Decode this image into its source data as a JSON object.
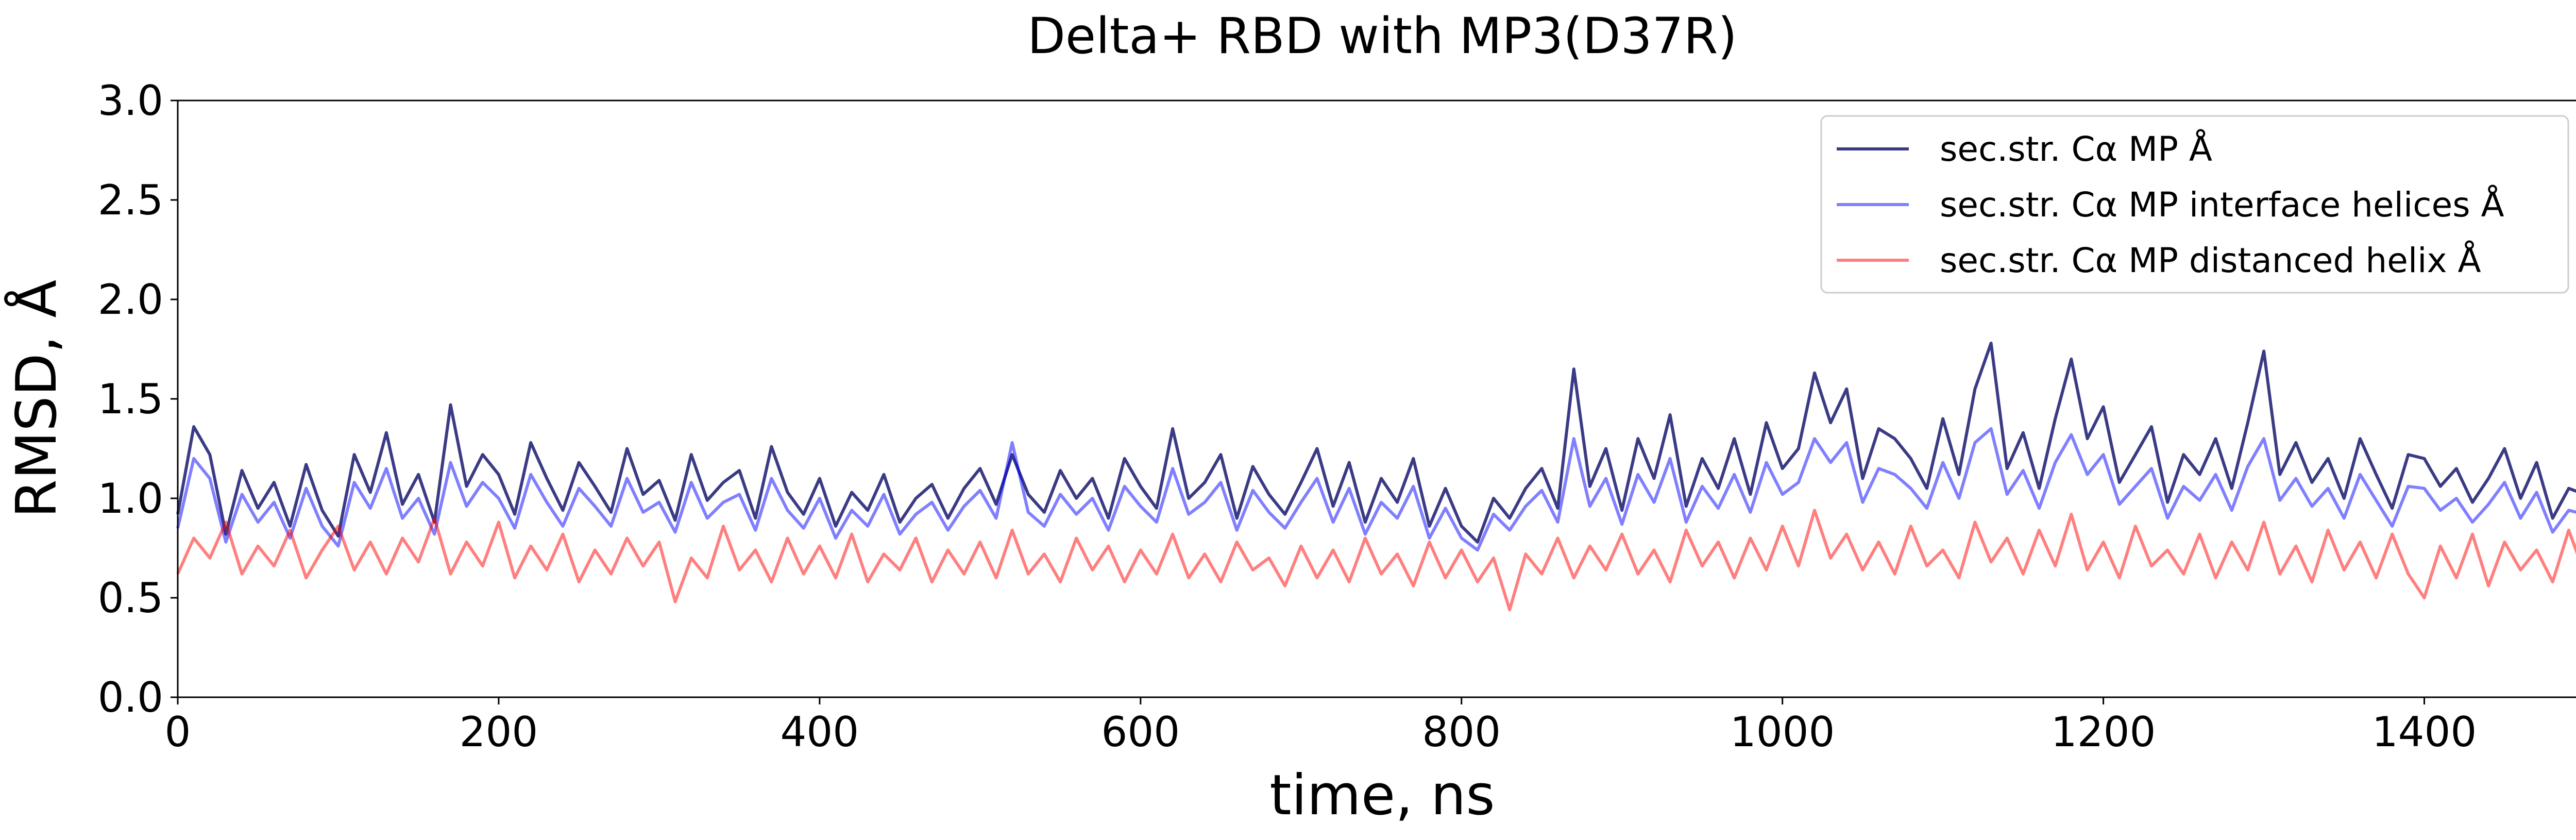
{
  "chart_data": {
    "type": "line",
    "title": "Delta+ RBD with MP3(D37R)",
    "xlabel": "time, ns",
    "ylabel": "RMSD, Å",
    "xlim": [
      0,
      1500
    ],
    "ylim": [
      0.0,
      3.0
    ],
    "xticks": [
      0,
      200,
      400,
      600,
      800,
      1000,
      1200,
      1400
    ],
    "yticks": [
      0.0,
      0.5,
      1.0,
      1.5,
      2.0,
      2.5,
      3.0
    ],
    "xtick_labels": [
      "0",
      "200",
      "400",
      "600",
      "800",
      "1000",
      "1200",
      "1400"
    ],
    "ytick_labels": [
      "0.0",
      "0.5",
      "1.0",
      "1.5",
      "2.0",
      "2.5",
      "3.0"
    ],
    "grid": false,
    "legend_position": "top-right",
    "series": [
      {
        "name": "sec.str. Cα MP Å",
        "color": "#191970",
        "opacity": 0.85,
        "x": [
          0,
          10,
          20,
          30,
          40,
          50,
          60,
          70,
          80,
          90,
          100,
          110,
          120,
          130,
          140,
          150,
          160,
          170,
          180,
          190,
          200,
          210,
          220,
          230,
          240,
          250,
          260,
          270,
          280,
          290,
          300,
          310,
          320,
          330,
          340,
          350,
          360,
          370,
          380,
          390,
          400,
          410,
          420,
          430,
          440,
          450,
          460,
          470,
          480,
          490,
          500,
          510,
          520,
          530,
          540,
          550,
          560,
          570,
          580,
          590,
          600,
          610,
          620,
          630,
          640,
          650,
          660,
          670,
          680,
          690,
          700,
          710,
          720,
          730,
          740,
          750,
          760,
          770,
          780,
          790,
          800,
          810,
          820,
          830,
          840,
          850,
          860,
          870,
          880,
          890,
          900,
          910,
          920,
          930,
          940,
          950,
          960,
          970,
          980,
          990,
          1000,
          1010,
          1020,
          1030,
          1040,
          1050,
          1060,
          1070,
          1080,
          1090,
          1100,
          1110,
          1120,
          1130,
          1140,
          1150,
          1160,
          1170,
          1180,
          1190,
          1200,
          1210,
          1220,
          1230,
          1240,
          1250,
          1260,
          1270,
          1280,
          1290,
          1300,
          1310,
          1320,
          1330,
          1340,
          1350,
          1360,
          1370,
          1380,
          1390,
          1400,
          1410,
          1420,
          1430,
          1440,
          1450,
          1460,
          1470,
          1480,
          1490,
          1500
        ],
        "y": [
          0.92,
          1.36,
          1.22,
          0.82,
          1.14,
          0.95,
          1.08,
          0.86,
          1.17,
          0.94,
          0.81,
          1.22,
          1.03,
          1.33,
          0.97,
          1.12,
          0.88,
          1.47,
          1.06,
          1.22,
          1.12,
          0.92,
          1.28,
          1.1,
          0.94,
          1.18,
          1.06,
          0.93,
          1.25,
          1.02,
          1.09,
          0.89,
          1.22,
          0.99,
          1.08,
          1.14,
          0.9,
          1.26,
          1.03,
          0.92,
          1.1,
          0.86,
          1.03,
          0.94,
          1.12,
          0.88,
          1.0,
          1.07,
          0.9,
          1.05,
          1.15,
          0.97,
          1.22,
          1.02,
          0.93,
          1.14,
          1.0,
          1.1,
          0.9,
          1.2,
          1.06,
          0.95,
          1.35,
          1.0,
          1.08,
          1.22,
          0.9,
          1.16,
          1.02,
          0.92,
          1.08,
          1.25,
          0.96,
          1.18,
          0.88,
          1.1,
          0.98,
          1.2,
          0.86,
          1.05,
          0.86,
          0.78,
          1.0,
          0.9,
          1.05,
          1.15,
          0.95,
          1.65,
          1.06,
          1.25,
          0.94,
          1.3,
          1.1,
          1.42,
          0.96,
          1.2,
          1.05,
          1.3,
          1.02,
          1.38,
          1.15,
          1.25,
          1.63,
          1.38,
          1.55,
          1.1,
          1.35,
          1.3,
          1.2,
          1.05,
          1.4,
          1.12,
          1.55,
          1.78,
          1.15,
          1.33,
          1.05,
          1.4,
          1.7,
          1.3,
          1.46,
          1.08,
          1.22,
          1.36,
          0.98,
          1.22,
          1.12,
          1.3,
          1.05,
          1.38,
          1.74,
          1.12,
          1.28,
          1.08,
          1.2,
          1.0,
          1.3,
          1.12,
          0.95,
          1.22,
          1.2,
          1.06,
          1.15,
          0.98,
          1.1,
          1.25,
          1.0,
          1.18,
          0.9,
          1.05,
          1.02
        ]
      },
      {
        "name": "sec.str. Cα MP interface helices Å",
        "color": "#0000ff",
        "opacity": 0.5,
        "x": [
          0,
          10,
          20,
          30,
          40,
          50,
          60,
          70,
          80,
          90,
          100,
          110,
          120,
          130,
          140,
          150,
          160,
          170,
          180,
          190,
          200,
          210,
          220,
          230,
          240,
          250,
          260,
          270,
          280,
          290,
          300,
          310,
          320,
          330,
          340,
          350,
          360,
          370,
          380,
          390,
          400,
          410,
          420,
          430,
          440,
          450,
          460,
          470,
          480,
          490,
          500,
          510,
          520,
          530,
          540,
          550,
          560,
          570,
          580,
          590,
          600,
          610,
          620,
          630,
          640,
          650,
          660,
          670,
          680,
          690,
          700,
          710,
          720,
          730,
          740,
          750,
          760,
          770,
          780,
          790,
          800,
          810,
          820,
          830,
          840,
          850,
          860,
          870,
          880,
          890,
          900,
          910,
          920,
          930,
          940,
          950,
          960,
          970,
          980,
          990,
          1000,
          1010,
          1020,
          1030,
          1040,
          1050,
          1060,
          1070,
          1080,
          1090,
          1100,
          1110,
          1120,
          1130,
          1140,
          1150,
          1160,
          1170,
          1180,
          1190,
          1200,
          1210,
          1220,
          1230,
          1240,
          1250,
          1260,
          1270,
          1280,
          1290,
          1300,
          1310,
          1320,
          1330,
          1340,
          1350,
          1360,
          1370,
          1380,
          1390,
          1400,
          1410,
          1420,
          1430,
          1440,
          1450,
          1460,
          1470,
          1480,
          1490,
          1500
        ],
        "y": [
          0.85,
          1.2,
          1.1,
          0.78,
          1.02,
          0.88,
          0.98,
          0.8,
          1.05,
          0.86,
          0.76,
          1.08,
          0.95,
          1.15,
          0.9,
          1.0,
          0.82,
          1.18,
          0.96,
          1.08,
          1.0,
          0.85,
          1.12,
          0.98,
          0.86,
          1.05,
          0.96,
          0.86,
          1.1,
          0.93,
          0.98,
          0.83,
          1.08,
          0.9,
          0.98,
          1.02,
          0.84,
          1.1,
          0.94,
          0.85,
          1.0,
          0.8,
          0.94,
          0.86,
          1.02,
          0.82,
          0.92,
          0.98,
          0.84,
          0.96,
          1.04,
          0.9,
          1.28,
          0.93,
          0.86,
          1.02,
          0.92,
          1.0,
          0.84,
          1.06,
          0.96,
          0.88,
          1.15,
          0.92,
          0.98,
          1.08,
          0.84,
          1.04,
          0.93,
          0.85,
          0.98,
          1.1,
          0.88,
          1.05,
          0.82,
          0.98,
          0.9,
          1.06,
          0.8,
          0.95,
          0.8,
          0.74,
          0.92,
          0.84,
          0.96,
          1.04,
          0.88,
          1.3,
          0.96,
          1.1,
          0.87,
          1.12,
          0.98,
          1.2,
          0.88,
          1.06,
          0.95,
          1.12,
          0.93,
          1.18,
          1.02,
          1.08,
          1.3,
          1.18,
          1.28,
          0.98,
          1.15,
          1.12,
          1.05,
          0.95,
          1.18,
          1.0,
          1.28,
          1.35,
          1.02,
          1.14,
          0.95,
          1.18,
          1.32,
          1.12,
          1.22,
          0.97,
          1.06,
          1.15,
          0.9,
          1.06,
          0.99,
          1.12,
          0.94,
          1.16,
          1.3,
          0.99,
          1.1,
          0.96,
          1.05,
          0.9,
          1.12,
          0.99,
          0.86,
          1.06,
          1.05,
          0.94,
          1.0,
          0.88,
          0.97,
          1.08,
          0.9,
          1.03,
          0.83,
          0.94,
          0.92
        ]
      },
      {
        "name": "sec.str. Cα MP distanced helix Å",
        "color": "#ff0000",
        "opacity": 0.5,
        "x": [
          0,
          10,
          20,
          30,
          40,
          50,
          60,
          70,
          80,
          90,
          100,
          110,
          120,
          130,
          140,
          150,
          160,
          170,
          180,
          190,
          200,
          210,
          220,
          230,
          240,
          250,
          260,
          270,
          280,
          290,
          300,
          310,
          320,
          330,
          340,
          350,
          360,
          370,
          380,
          390,
          400,
          410,
          420,
          430,
          440,
          450,
          460,
          470,
          480,
          490,
          500,
          510,
          520,
          530,
          540,
          550,
          560,
          570,
          580,
          590,
          600,
          610,
          620,
          630,
          640,
          650,
          660,
          670,
          680,
          690,
          700,
          710,
          720,
          730,
          740,
          750,
          760,
          770,
          780,
          790,
          800,
          810,
          820,
          830,
          840,
          850,
          860,
          870,
          880,
          890,
          900,
          910,
          920,
          930,
          940,
          950,
          960,
          970,
          980,
          990,
          1000,
          1010,
          1020,
          1030,
          1040,
          1050,
          1060,
          1070,
          1080,
          1090,
          1100,
          1110,
          1120,
          1130,
          1140,
          1150,
          1160,
          1170,
          1180,
          1190,
          1200,
          1210,
          1220,
          1230,
          1240,
          1250,
          1260,
          1270,
          1280,
          1290,
          1300,
          1310,
          1320,
          1330,
          1340,
          1350,
          1360,
          1370,
          1380,
          1390,
          1400,
          1410,
          1420,
          1430,
          1440,
          1450,
          1460,
          1470,
          1480,
          1490,
          1500
        ],
        "y": [
          0.62,
          0.8,
          0.7,
          0.88,
          0.62,
          0.76,
          0.66,
          0.84,
          0.6,
          0.74,
          0.86,
          0.64,
          0.78,
          0.62,
          0.8,
          0.68,
          0.9,
          0.62,
          0.78,
          0.66,
          0.88,
          0.6,
          0.76,
          0.64,
          0.82,
          0.58,
          0.74,
          0.62,
          0.8,
          0.66,
          0.78,
          0.48,
          0.7,
          0.6,
          0.86,
          0.64,
          0.74,
          0.58,
          0.8,
          0.62,
          0.76,
          0.6,
          0.82,
          0.58,
          0.72,
          0.64,
          0.8,
          0.58,
          0.74,
          0.62,
          0.78,
          0.6,
          0.84,
          0.62,
          0.72,
          0.58,
          0.8,
          0.64,
          0.76,
          0.58,
          0.74,
          0.62,
          0.82,
          0.6,
          0.72,
          0.58,
          0.78,
          0.64,
          0.7,
          0.56,
          0.76,
          0.6,
          0.74,
          0.58,
          0.8,
          0.62,
          0.72,
          0.56,
          0.78,
          0.6,
          0.74,
          0.58,
          0.7,
          0.44,
          0.72,
          0.62,
          0.8,
          0.6,
          0.76,
          0.64,
          0.82,
          0.62,
          0.74,
          0.58,
          0.84,
          0.66,
          0.78,
          0.6,
          0.8,
          0.64,
          0.86,
          0.66,
          0.94,
          0.7,
          0.82,
          0.64,
          0.78,
          0.62,
          0.86,
          0.66,
          0.74,
          0.6,
          0.88,
          0.68,
          0.8,
          0.62,
          0.84,
          0.66,
          0.92,
          0.64,
          0.78,
          0.6,
          0.86,
          0.66,
          0.74,
          0.62,
          0.82,
          0.6,
          0.78,
          0.64,
          0.88,
          0.62,
          0.76,
          0.58,
          0.84,
          0.64,
          0.78,
          0.6,
          0.82,
          0.62,
          0.5,
          0.76,
          0.6,
          0.82,
          0.56,
          0.78,
          0.64,
          0.74,
          0.58,
          0.84,
          0.62
        ]
      }
    ]
  }
}
